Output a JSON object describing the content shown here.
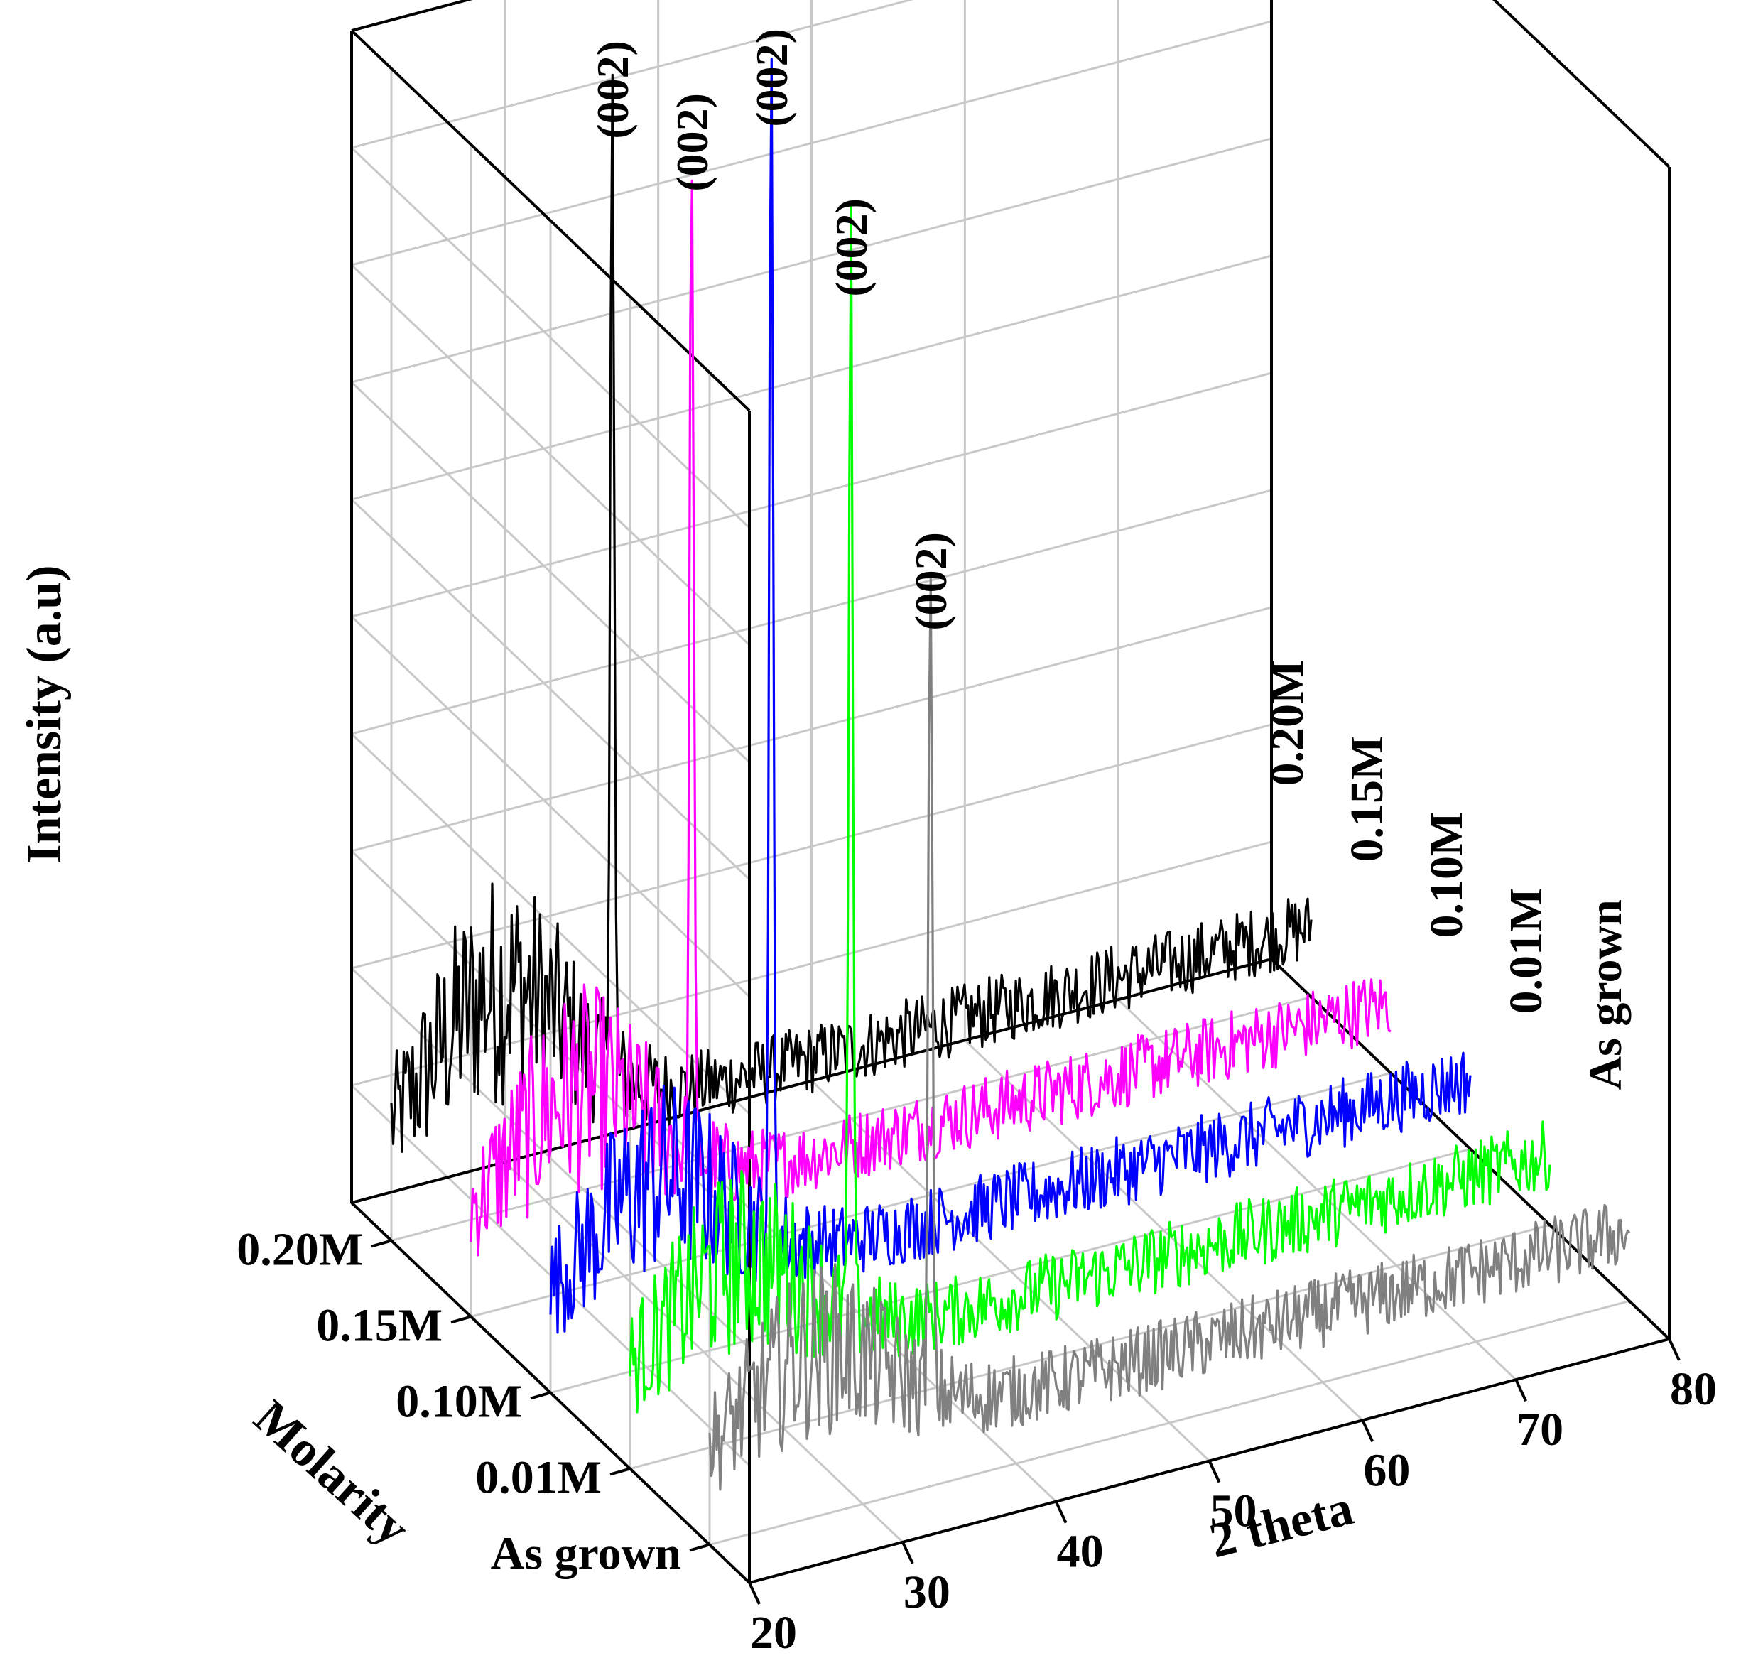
{
  "chart_data": {
    "type": "line",
    "projection": "3d-waterfall",
    "title": "",
    "xlabel": "2 theta",
    "ylabel": "Molarity",
    "zlabel": "Intensity (a.u)",
    "x_ticks": [
      20,
      30,
      40,
      50,
      60,
      70,
      80
    ],
    "xlim": [
      20,
      80
    ],
    "categories": [
      "0.20M",
      "0.15M",
      "0.10M",
      "0.01M",
      "As grown"
    ],
    "series": [
      {
        "name": "0.20M",
        "color": "#000000",
        "peak_x": 34.4,
        "peak_height": 0.86,
        "peak_label": "(002)",
        "bump_height": 0.24
      },
      {
        "name": "0.15M",
        "color": "#ff00ff",
        "peak_x": 34.4,
        "peak_height": 0.88,
        "peak_label": "(002)",
        "bump_height": 0.2
      },
      {
        "name": "0.10M",
        "color": "#0000ff",
        "peak_x": 34.4,
        "peak_height": 1.0,
        "peak_label": "(002)",
        "bump_height": 0.18
      },
      {
        "name": "0.01M",
        "color": "#00ff00",
        "peak_x": 34.4,
        "peak_height": 0.92,
        "peak_label": "(002)",
        "bump_height": 0.17
      },
      {
        "name": "As grown",
        "color": "#808080",
        "peak_x": 34.4,
        "peak_height": 0.7,
        "peak_label": "(002)",
        "bump_height": 0.15
      }
    ],
    "grid": true
  }
}
